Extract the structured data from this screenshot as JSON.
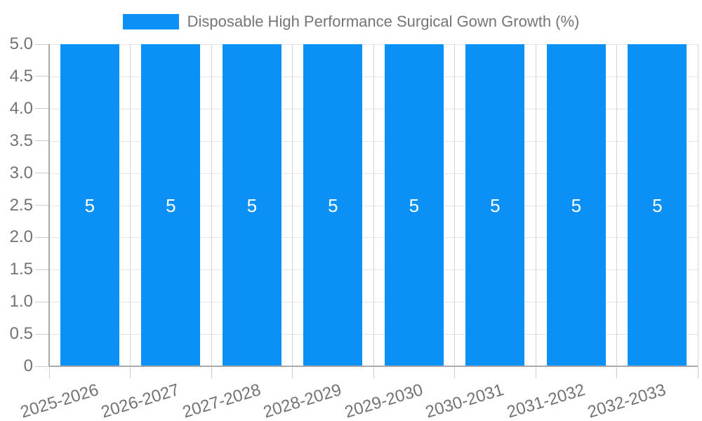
{
  "legend": {
    "label": "Disposable High Performance Surgical Gown Growth (%)"
  },
  "chart_data": {
    "type": "bar",
    "title": "Disposable High Performance Surgical Gown Growth (%)",
    "categories": [
      "2025-2026",
      "2026-2027",
      "2027-2028",
      "2028-2029",
      "2029-2030",
      "2030-2031",
      "2031-2032",
      "2032-2033"
    ],
    "values": [
      5,
      5,
      5,
      5,
      5,
      5,
      5,
      5
    ],
    "value_labels": [
      "5",
      "5",
      "5",
      "5",
      "5",
      "5",
      "5",
      "5"
    ],
    "xlabel": "",
    "ylabel": "",
    "ylim": [
      0,
      5
    ],
    "ytick_labels": [
      "5.0",
      "4.5",
      "4.0",
      "3.5",
      "3.0",
      "2.5",
      "2.0",
      "1.5",
      "1.0",
      "0.5",
      "0"
    ],
    "grid": true,
    "legend_position": "top-center",
    "x_label_rotation_deg": -17,
    "colors": {
      "bar": "#0b91f5",
      "value_text": "#ffffff",
      "legend_text": "#757575",
      "axis_text": "#737373",
      "grid_h": "#e5e5e5",
      "grid_v": "#d4d4d4",
      "axis_line": "#a9a9a9",
      "tick": "#cccccc",
      "background": "#ffffff"
    }
  }
}
